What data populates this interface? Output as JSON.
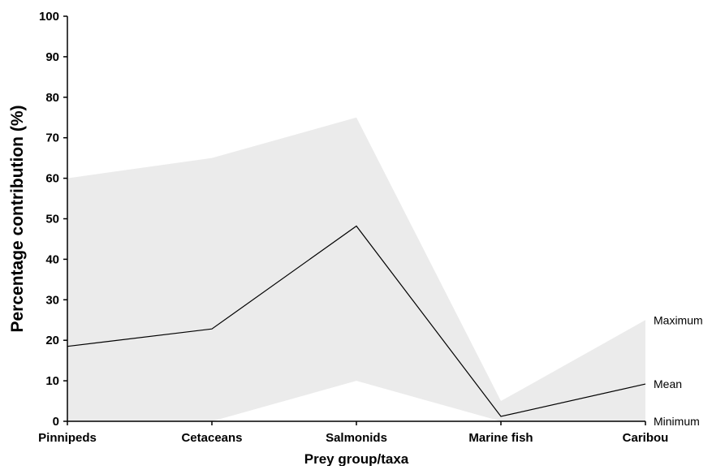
{
  "chart_data": {
    "type": "area",
    "title": "",
    "xlabel": "Prey group/taxa",
    "ylabel": "Percentage contribution (%)",
    "categories": [
      "Pinnipeds",
      "Cetaceans",
      "Salmonids",
      "Marine fish",
      "Caribou"
    ],
    "ylim": [
      0,
      100
    ],
    "yticks": [
      0,
      10,
      20,
      30,
      40,
      50,
      60,
      70,
      80,
      90,
      100
    ],
    "grid": false,
    "legend": "none",
    "series": [
      {
        "name": "Maximum",
        "values": [
          60,
          65,
          75,
          5,
          25
        ],
        "style": "filled band upper edge"
      },
      {
        "name": "Mean",
        "values": [
          18.5,
          22.8,
          48.2,
          1.2,
          9.2
        ],
        "style": "line"
      },
      {
        "name": "Minimum",
        "values": [
          0,
          0,
          10,
          0,
          0
        ],
        "style": "filled band lower edge"
      }
    ],
    "colors": {
      "band": "#ebebeb",
      "line": "#000000",
      "axis": "#000000"
    }
  }
}
